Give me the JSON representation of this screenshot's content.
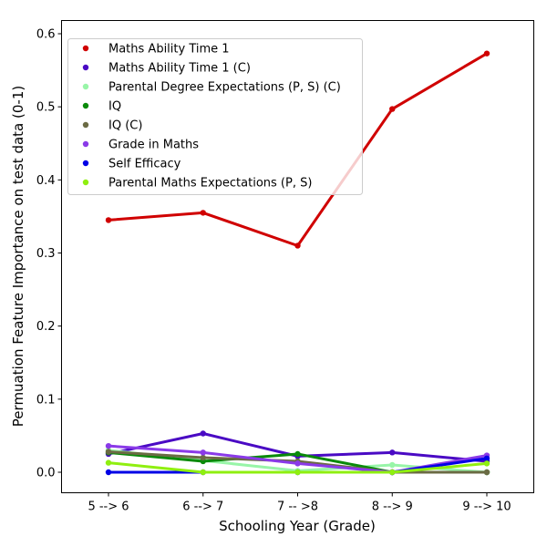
{
  "chart_data": {
    "type": "line",
    "title": "",
    "xlabel": "Schooling Year (Grade)",
    "ylabel": "Permuation Feature Importance on test data (0-1)",
    "categories": [
      "5 --> 6",
      "6 --> 7",
      "7 -- >8",
      "8 --> 9",
      "9 --> 10"
    ],
    "ylim": [
      -0.028,
      0.6
    ],
    "yticks": [
      0.0,
      0.1,
      0.2,
      0.3,
      0.4,
      0.5,
      0.6
    ],
    "ytick_labels": [
      "0.0",
      "0.1",
      "0.2",
      "0.3",
      "0.4",
      "0.5",
      "0.6"
    ],
    "grid": false,
    "legend_position": "top-left",
    "series": [
      {
        "name": "Maths Ability Time 1",
        "color": "#d00000",
        "values": [
          0.345,
          0.355,
          0.31,
          0.497,
          0.573
        ]
      },
      {
        "name": "Maths Ability Time 1 (C)",
        "color": "#4a0ac4",
        "values": [
          0.025,
          0.053,
          0.022,
          0.027,
          0.015
        ]
      },
      {
        "name": "Parental Degree Expectations (P, S) (C)",
        "color": "#98f5a8",
        "values": [
          0.03,
          0.016,
          0.002,
          0.01,
          0.0
        ]
      },
      {
        "name": "IQ",
        "color": "#0a8a0a",
        "values": [
          0.027,
          0.015,
          0.025,
          0.0,
          0.0
        ]
      },
      {
        "name": "IQ (C)",
        "color": "#6b6b44",
        "values": [
          0.028,
          0.02,
          0.015,
          0.0,
          0.0
        ]
      },
      {
        "name": "Grade in Maths",
        "color": "#8a3ae8",
        "values": [
          0.036,
          0.027,
          0.012,
          0.0,
          0.023
        ]
      },
      {
        "name": "Self Efficacy",
        "color": "#0000e6",
        "values": [
          0.0,
          0.0,
          0.0,
          0.0,
          0.019
        ]
      },
      {
        "name": "Parental Maths Expectations (P, S)",
        "color": "#8fef10",
        "values": [
          0.013,
          0.0,
          0.0,
          0.0,
          0.012
        ]
      }
    ]
  }
}
